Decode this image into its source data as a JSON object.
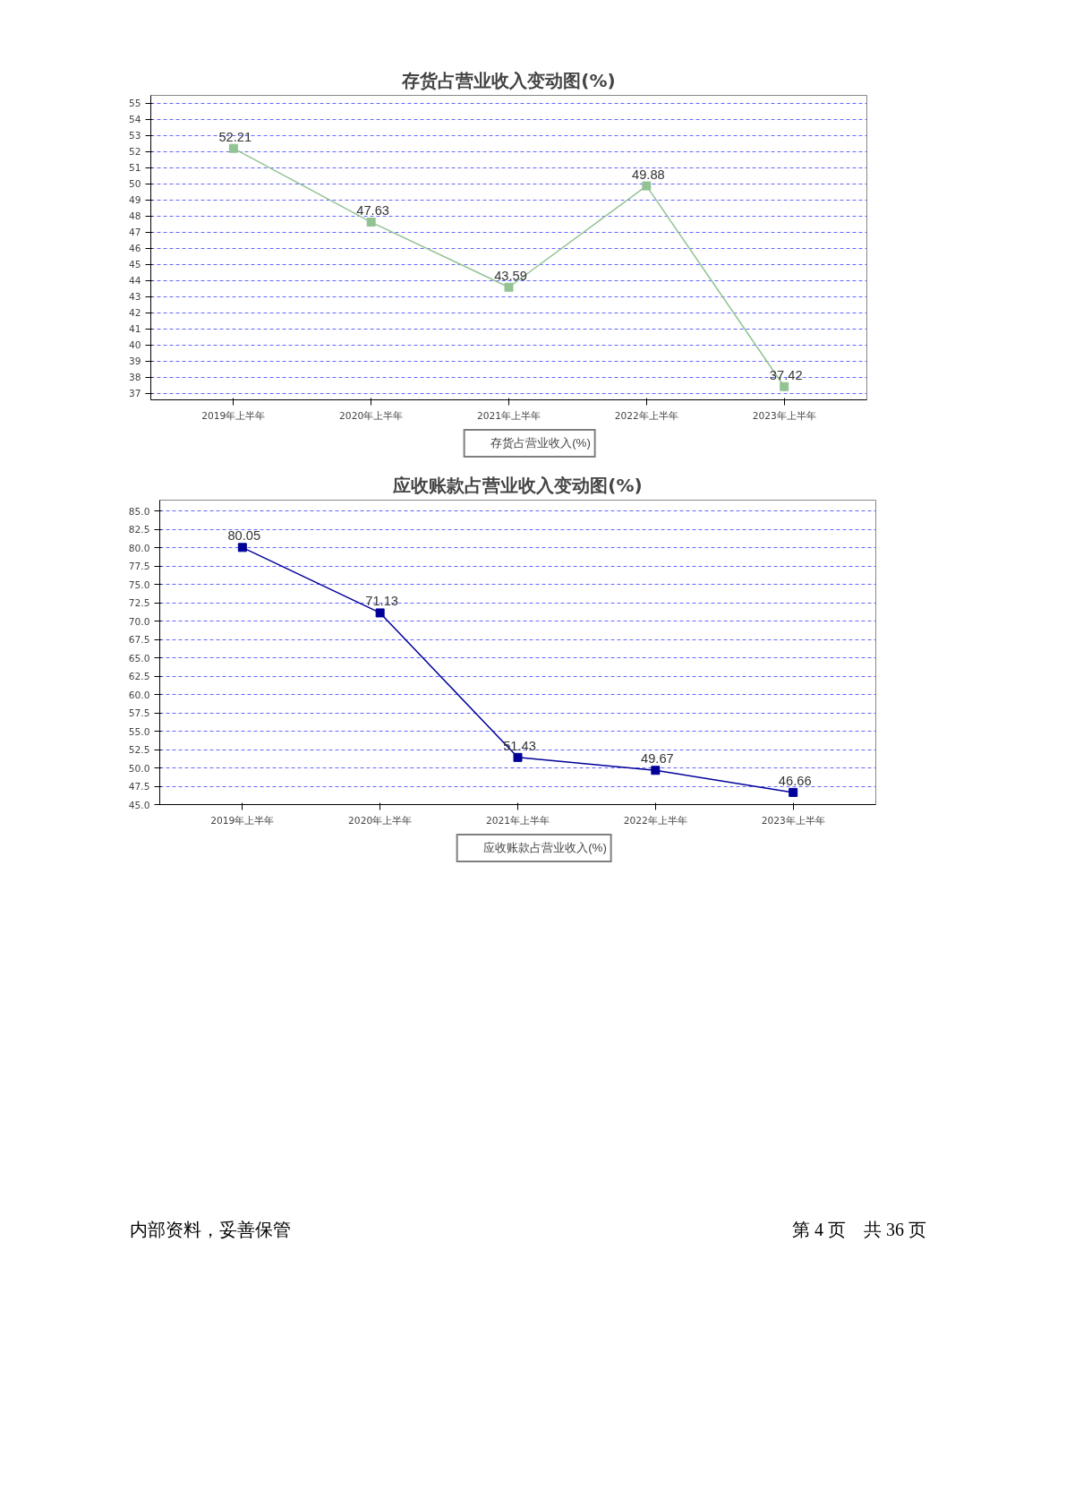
{
  "chart_data": [
    {
      "type": "line",
      "title": "存货占营业收入变动图(%)",
      "categories": [
        "2019年上半年",
        "2020年上半年",
        "2021年上半年",
        "2022年上半年",
        "2023年上半年"
      ],
      "series": [
        {
          "name": "存货占营业收入(%)",
          "color": "#93c393",
          "values": [
            52.21,
            47.63,
            43.59,
            49.88,
            37.42
          ]
        }
      ],
      "ylim": [
        36.6,
        55.5
      ],
      "yticks": [
        37,
        38,
        39,
        40,
        41,
        42,
        43,
        44,
        45,
        46,
        47,
        48,
        49,
        50,
        51,
        52,
        53,
        54,
        55
      ],
      "grid": "y",
      "marker": "square",
      "line_style": "solid",
      "data_labels": true,
      "legend": "bottom"
    },
    {
      "type": "line",
      "title": "应收账款占营业收入变动图(%)",
      "categories": [
        "2019年上半年",
        "2020年上半年",
        "2021年上半年",
        "2022年上半年",
        "2023年上半年"
      ],
      "series": [
        {
          "name": "应收账款占营业收入(%)",
          "color": "#000099",
          "values": [
            80.05,
            71.13,
            51.43,
            49.67,
            46.66
          ]
        }
      ],
      "ylim": [
        45,
        86.5
      ],
      "yticks": [
        {
          "value": 45,
          "label": "45.0"
        },
        {
          "value": 47.5,
          "label": "47.5"
        },
        {
          "value": 50,
          "label": "50.0"
        },
        {
          "value": 52.5,
          "label": "52.5"
        },
        {
          "value": 55,
          "label": "55.0"
        },
        {
          "value": 57.5,
          "label": "57.5"
        },
        {
          "value": 60,
          "label": "60.0"
        },
        {
          "value": 62.5,
          "label": "62.5"
        },
        {
          "value": 65,
          "label": "65.0"
        },
        {
          "value": 67.5,
          "label": "67.5"
        },
        {
          "value": 70,
          "label": "70.0"
        },
        {
          "value": 72.5,
          "label": "72.5"
        },
        {
          "value": 75,
          "label": "75.0"
        },
        {
          "value": 77.5,
          "label": "77.5"
        },
        {
          "value": 80,
          "label": "80.0"
        },
        {
          "value": 82.5,
          "label": "82.5"
        },
        {
          "value": 85,
          "label": "85.0"
        }
      ],
      "grid": "y",
      "marker": "square",
      "line_style": "solid",
      "data_labels": true,
      "legend": "bottom",
      "annotations": [
        "内部资料，妥善保管",
        "第 4 页　共 36 页"
      ]
    }
  ]
}
